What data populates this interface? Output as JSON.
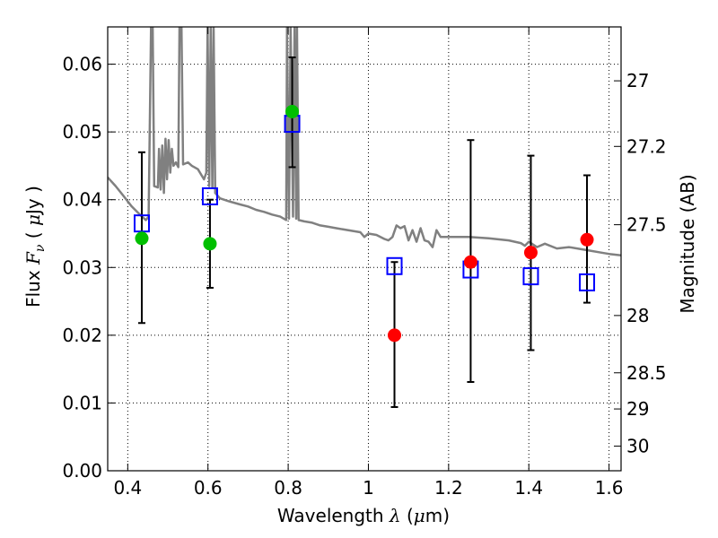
{
  "chart_data": {
    "type": "scatter",
    "title": "",
    "xlabel": {
      "prefix": "Wavelength ",
      "lambda": "λ",
      "unit_open": " (",
      "mu": "μ",
      "unit_rest": "m)"
    },
    "ylabel": {
      "prefix": "Flux ",
      "F": "F",
      "nu": "ν",
      "unit_open": " ( ",
      "mu": "μ",
      "unit_rest": "Jy )"
    },
    "y2label": "Magnitude (AB)",
    "xlim": [
      0.35,
      1.63
    ],
    "ylim": [
      0.0,
      0.0655
    ],
    "grid": true,
    "xticks": [
      {
        "value": 0.4,
        "label": "0.4"
      },
      {
        "value": 0.6,
        "label": "0.6"
      },
      {
        "value": 0.8,
        "label": "0.8"
      },
      {
        "value": 1.0,
        "label": "1"
      },
      {
        "value": 1.2,
        "label": "1.2"
      },
      {
        "value": 1.4,
        "label": "1.4"
      },
      {
        "value": 1.6,
        "label": "1.6"
      }
    ],
    "yticks": [
      {
        "value": 0.0,
        "label": "0.00"
      },
      {
        "value": 0.01,
        "label": "0.01"
      },
      {
        "value": 0.02,
        "label": "0.02"
      },
      {
        "value": 0.03,
        "label": "0.03"
      },
      {
        "value": 0.04,
        "label": "0.04"
      },
      {
        "value": 0.05,
        "label": "0.05"
      },
      {
        "value": 0.06,
        "label": "0.06"
      }
    ],
    "y2ticks": [
      {
        "value": 27.0,
        "label": "27"
      },
      {
        "value": 27.2,
        "label": "27.2"
      },
      {
        "value": 27.5,
        "label": "27.5"
      },
      {
        "value": 28.0,
        "label": "28"
      },
      {
        "value": 28.5,
        "label": "28.5"
      },
      {
        "value": 29.0,
        "label": "29"
      },
      {
        "value": 30.0,
        "label": "30"
      }
    ],
    "series": [
      {
        "name": "model spectrum",
        "kind": "line",
        "color": "#808080",
        "points": [
          [
            0.35,
            0.0433
          ],
          [
            0.37,
            0.042
          ],
          [
            0.39,
            0.0405
          ],
          [
            0.41,
            0.039
          ],
          [
            0.43,
            0.0378
          ],
          [
            0.445,
            0.037
          ],
          [
            0.452,
            0.0375
          ],
          [
            0.458,
            0.0655
          ],
          [
            0.462,
            0.0655
          ],
          [
            0.466,
            0.042
          ],
          [
            0.475,
            0.0418
          ],
          [
            0.478,
            0.0475
          ],
          [
            0.482,
            0.0415
          ],
          [
            0.486,
            0.048
          ],
          [
            0.49,
            0.041
          ],
          [
            0.494,
            0.049
          ],
          [
            0.498,
            0.043
          ],
          [
            0.502,
            0.0488
          ],
          [
            0.506,
            0.044
          ],
          [
            0.51,
            0.0475
          ],
          [
            0.514,
            0.045
          ],
          [
            0.52,
            0.0455
          ],
          [
            0.526,
            0.0448
          ],
          [
            0.529,
            0.0655
          ],
          [
            0.534,
            0.0655
          ],
          [
            0.538,
            0.0452
          ],
          [
            0.55,
            0.0455
          ],
          [
            0.56,
            0.045
          ],
          [
            0.575,
            0.0445
          ],
          [
            0.59,
            0.043
          ],
          [
            0.596,
            0.044
          ],
          [
            0.599,
            0.0655
          ],
          [
            0.603,
            0.042
          ],
          [
            0.607,
            0.0655
          ],
          [
            0.611,
            0.0418
          ],
          [
            0.614,
            0.0655
          ],
          [
            0.618,
            0.041
          ],
          [
            0.63,
            0.0402
          ],
          [
            0.65,
            0.0398
          ],
          [
            0.68,
            0.0393
          ],
          [
            0.7,
            0.039
          ],
          [
            0.72,
            0.0385
          ],
          [
            0.74,
            0.0382
          ],
          [
            0.76,
            0.0378
          ],
          [
            0.78,
            0.0375
          ],
          [
            0.795,
            0.037
          ],
          [
            0.797,
            0.0655
          ],
          [
            0.802,
            0.0372
          ],
          [
            0.806,
            0.0655
          ],
          [
            0.812,
            0.0375
          ],
          [
            0.816,
            0.0655
          ],
          [
            0.82,
            0.0372
          ],
          [
            0.822,
            0.0655
          ],
          [
            0.826,
            0.037
          ],
          [
            0.84,
            0.0368
          ],
          [
            0.86,
            0.0366
          ],
          [
            0.88,
            0.0362
          ],
          [
            0.9,
            0.036
          ],
          [
            0.92,
            0.0358
          ],
          [
            0.94,
            0.0356
          ],
          [
            0.96,
            0.0354
          ],
          [
            0.98,
            0.0352
          ],
          [
            0.99,
            0.0345
          ],
          [
            1.0,
            0.035
          ],
          [
            1.02,
            0.0348
          ],
          [
            1.04,
            0.0342
          ],
          [
            1.05,
            0.034
          ],
          [
            1.06,
            0.0345
          ],
          [
            1.07,
            0.0362
          ],
          [
            1.08,
            0.0358
          ],
          [
            1.09,
            0.0361
          ],
          [
            1.1,
            0.034
          ],
          [
            1.11,
            0.0355
          ],
          [
            1.12,
            0.0338
          ],
          [
            1.13,
            0.0358
          ],
          [
            1.14,
            0.034
          ],
          [
            1.15,
            0.0338
          ],
          [
            1.16,
            0.033
          ],
          [
            1.17,
            0.0355
          ],
          [
            1.18,
            0.0345
          ],
          [
            1.2,
            0.0345
          ],
          [
            1.22,
            0.0345
          ],
          [
            1.25,
            0.0345
          ],
          [
            1.3,
            0.0343
          ],
          [
            1.35,
            0.034
          ],
          [
            1.38,
            0.0336
          ],
          [
            1.39,
            0.0332
          ],
          [
            1.4,
            0.0338
          ],
          [
            1.42,
            0.033
          ],
          [
            1.44,
            0.0335
          ],
          [
            1.47,
            0.0328
          ],
          [
            1.5,
            0.033
          ],
          [
            1.55,
            0.0325
          ],
          [
            1.58,
            0.0322
          ],
          [
            1.6,
            0.032
          ],
          [
            1.63,
            0.0318
          ]
        ]
      },
      {
        "name": "model photometry",
        "kind": "open-square",
        "color": "#0000ff",
        "points": [
          [
            0.435,
            0.0365
          ],
          [
            0.605,
            0.0405
          ],
          [
            0.81,
            0.0512
          ],
          [
            1.065,
            0.0302
          ],
          [
            1.255,
            0.0297
          ],
          [
            1.405,
            0.0287
          ],
          [
            1.545,
            0.0278
          ]
        ]
      },
      {
        "name": "observed (green)",
        "kind": "filled-circle",
        "color": "#00bf00",
        "points": [
          [
            0.435,
            0.0343
          ],
          [
            0.605,
            0.0335
          ],
          [
            0.81,
            0.053
          ]
        ]
      },
      {
        "name": "observed (red)",
        "kind": "filled-circle",
        "color": "#ff0000",
        "points": [
          [
            1.065,
            0.02
          ],
          [
            1.255,
            0.0308
          ],
          [
            1.405,
            0.0322
          ],
          [
            1.545,
            0.0341
          ]
        ]
      },
      {
        "name": "error bars",
        "kind": "errorbar",
        "color": "#000000",
        "bars": [
          {
            "x": 0.435,
            "low": 0.0218,
            "high": 0.047
          },
          {
            "x": 0.605,
            "low": 0.027,
            "high": 0.04
          },
          {
            "x": 0.81,
            "low": 0.0448,
            "high": 0.061
          },
          {
            "x": 1.065,
            "low": 0.0094,
            "high": 0.0308
          },
          {
            "x": 1.255,
            "low": 0.0131,
            "high": 0.0488
          },
          {
            "x": 1.405,
            "low": 0.0178,
            "high": 0.0465
          },
          {
            "x": 1.545,
            "low": 0.0248,
            "high": 0.0436
          }
        ]
      }
    ]
  }
}
